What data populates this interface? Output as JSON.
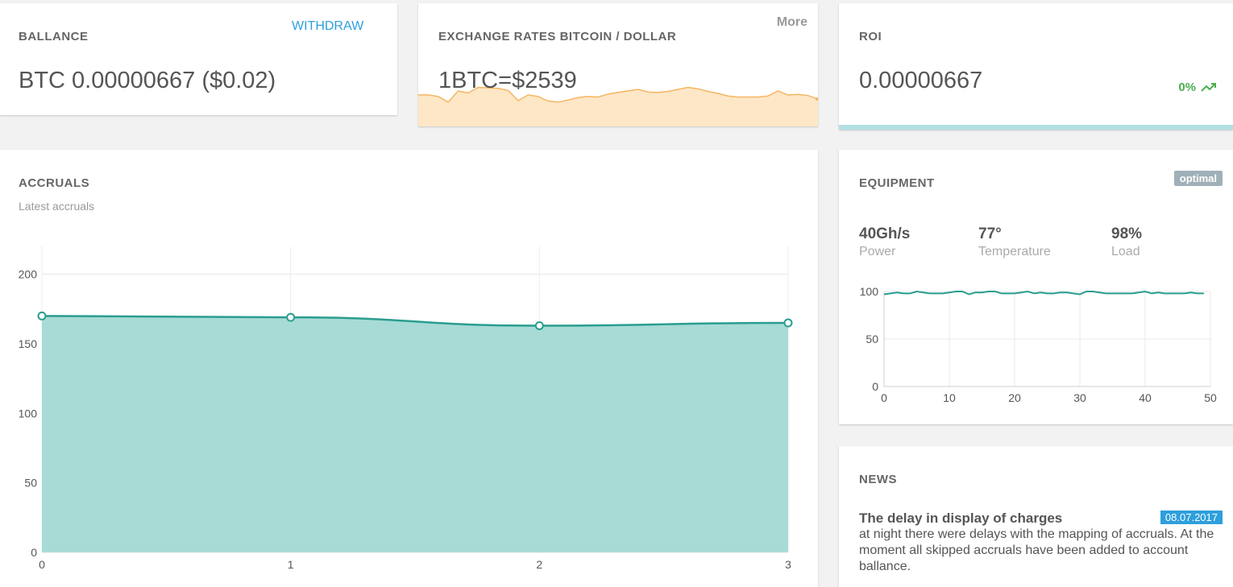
{
  "balance": {
    "title": "BALLANCE",
    "withdraw_label": "WITHDRAW",
    "value": "BTC 0.00000667 ($0.02)"
  },
  "rates": {
    "title": "EXCHANGE RATES BITCOIN / DOLLAR",
    "more_label": "More",
    "value": "1BTC=$2539",
    "fill_color": "#fde7c6",
    "line_color": "#f5b561",
    "sparkline": [
      62,
      62,
      59,
      48,
      70,
      66,
      77,
      76,
      75,
      71,
      51,
      62,
      59,
      50,
      48,
      52,
      57,
      59,
      58,
      64,
      67,
      70,
      73,
      68,
      67,
      69,
      73,
      77,
      74,
      69,
      65,
      60,
      58,
      58,
      58,
      60,
      70,
      62,
      63,
      61,
      54
    ]
  },
  "roi": {
    "title": "ROI",
    "value": "0.00000667",
    "change": "0%",
    "change_color": "#4caf50",
    "trend_icon": "trending-up-icon"
  },
  "accruals": {
    "title": "ACCRUALS",
    "subtitle": "Latest accruals"
  },
  "equipment": {
    "title": "EQUIPMENT",
    "status_badge": "optimal",
    "stats": [
      {
        "value": "40Gh/s",
        "label": "Power"
      },
      {
        "value": "77°",
        "label": "Temperature"
      },
      {
        "value": "98%",
        "label": "Load"
      }
    ]
  },
  "news": {
    "title": "NEWS",
    "date": "08.07.2017",
    "headline": "The delay in display of charges",
    "body": "at night there were delays with the mapping of accruals. At the moment all skipped accruals have been added to account ballance."
  },
  "chart_data": [
    {
      "id": "accruals",
      "type": "area",
      "x": [
        0,
        1,
        2,
        3
      ],
      "values": [
        170,
        169,
        163,
        165
      ],
      "ylim": [
        0,
        220
      ],
      "yticks": [
        0,
        50,
        100,
        150,
        200
      ],
      "grid": true,
      "color": "#2a9d8f",
      "fill": "#a8dbd6"
    },
    {
      "id": "equipment",
      "type": "line",
      "x": [
        0,
        1,
        2,
        3,
        4,
        5,
        6,
        7,
        8,
        9,
        10,
        11,
        12,
        13,
        14,
        15,
        16,
        17,
        18,
        19,
        20,
        21,
        22,
        23,
        24,
        25,
        26,
        27,
        28,
        29,
        30,
        31,
        32,
        33,
        34,
        35,
        36,
        37,
        38,
        39,
        40,
        41,
        42,
        43,
        44,
        45,
        46,
        47,
        48,
        49
      ],
      "values": [
        97,
        98,
        99,
        98,
        98,
        100,
        99,
        98,
        98,
        98,
        99,
        100,
        100,
        97,
        99,
        99,
        100,
        100,
        98,
        98,
        98,
        99,
        100,
        98,
        99,
        98,
        98,
        99,
        99,
        98,
        97,
        100,
        100,
        99,
        98,
        98,
        98,
        98,
        98,
        99,
        100,
        98,
        99,
        98,
        98,
        98,
        98,
        99,
        98,
        98
      ],
      "xlim": [
        0,
        50
      ],
      "xticks": [
        0,
        10,
        20,
        30,
        40,
        50
      ],
      "ylim": [
        0,
        100
      ],
      "yticks": [
        0,
        50,
        100
      ],
      "grid": true,
      "color": "#2a9d8f"
    }
  ]
}
